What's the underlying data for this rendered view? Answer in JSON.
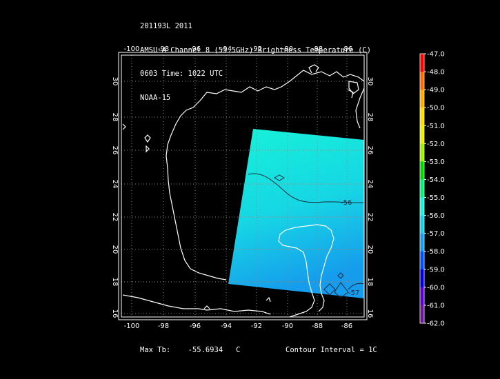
{
  "header": {
    "line1": "201193L 2011",
    "line2": "AMSU-A Channel 8 (55.5GHz) Brightness Temperature (C)",
    "line3": "0603 Time: 1022 UTC",
    "line4": "NOAA-15"
  },
  "map": {
    "lon_ticks": [
      "-100",
      "-98",
      "-96",
      "-94",
      "-92",
      "-90",
      "-88",
      "-86"
    ],
    "lat_ticks": [
      "30",
      "28",
      "26",
      "24",
      "22",
      "20",
      "18",
      "16"
    ],
    "contour_label_1": "-56",
    "contour_label_2": "-57",
    "coastline_color": "#ffffff",
    "swath_colors": [
      "#17f2d8",
      "#16d0e6",
      "#159ced"
    ]
  },
  "colorbar": {
    "labels": [
      "-47.0",
      "-48.0",
      "-49.0",
      "-50.0",
      "-51.0",
      "-52.0",
      "-53.0",
      "-54.0",
      "-55.0",
      "-56.0",
      "-57.0",
      "-58.0",
      "-59.0",
      "-60.0",
      "-61.0",
      "-62.0"
    ],
    "colors": [
      "#ff0000",
      "#ff6a00",
      "#ffaa00",
      "#ffdc00",
      "#e8f000",
      "#9cf000",
      "#00d800",
      "#00f078",
      "#17f2d8",
      "#16d0e6",
      "#159ced",
      "#0050ff",
      "#0000e6",
      "#5a00d2",
      "#6e1496",
      "#28005a"
    ]
  },
  "footer": {
    "max_label": "Max Tb:",
    "max_value": "-55.6934",
    "max_unit": "C",
    "contour": "Contour Interval = 1C"
  }
}
